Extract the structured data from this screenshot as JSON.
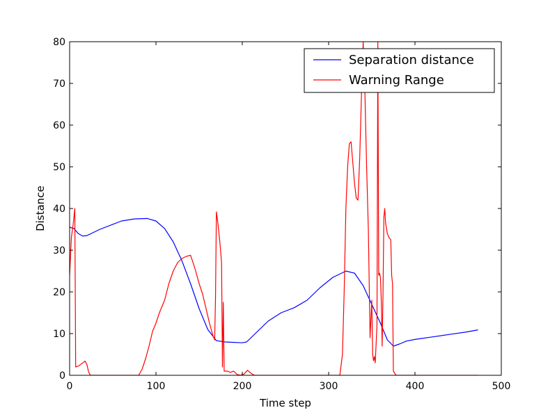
{
  "chart_data": {
    "type": "line",
    "xlabel": "Time step",
    "ylabel": "Distance",
    "xlim": [
      0,
      500
    ],
    "ylim": [
      0,
      80
    ],
    "xticks": [
      0,
      100,
      200,
      300,
      400,
      500
    ],
    "yticks": [
      0,
      10,
      20,
      30,
      40,
      50,
      60,
      70,
      80
    ],
    "grid": false,
    "legend_position": "top-right",
    "series": [
      {
        "name": "Separation distance",
        "color": "#0000ff",
        "points": [
          [
            0,
            35.5
          ],
          [
            5,
            35.2
          ],
          [
            10,
            34.0
          ],
          [
            15,
            33.4
          ],
          [
            20,
            33.5
          ],
          [
            25,
            34.0
          ],
          [
            35,
            35.0
          ],
          [
            50,
            36.2
          ],
          [
            60,
            37.0
          ],
          [
            75,
            37.5
          ],
          [
            90,
            37.6
          ],
          [
            100,
            37.0
          ],
          [
            110,
            35.2
          ],
          [
            120,
            32.0
          ],
          [
            130,
            27.5
          ],
          [
            140,
            22.0
          ],
          [
            150,
            16.0
          ],
          [
            160,
            11.0
          ],
          [
            170,
            8.3
          ],
          [
            180,
            8.0
          ],
          [
            190,
            7.9
          ],
          [
            200,
            7.8
          ],
          [
            205,
            8.0
          ],
          [
            215,
            10.0
          ],
          [
            230,
            13.0
          ],
          [
            245,
            15.0
          ],
          [
            260,
            16.2
          ],
          [
            275,
            18.0
          ],
          [
            290,
            21.0
          ],
          [
            305,
            23.5
          ],
          [
            320,
            25.0
          ],
          [
            330,
            24.5
          ],
          [
            340,
            21.5
          ],
          [
            350,
            17.0
          ],
          [
            360,
            12.5
          ],
          [
            368,
            8.5
          ],
          [
            375,
            7.0
          ],
          [
            382,
            7.5
          ],
          [
            390,
            8.2
          ],
          [
            400,
            8.6
          ],
          [
            420,
            9.2
          ],
          [
            440,
            9.8
          ],
          [
            460,
            10.4
          ],
          [
            473,
            10.9
          ]
        ]
      },
      {
        "name": "Warning Range",
        "color": "#ff0000",
        "points": [
          [
            0,
            24
          ],
          [
            2,
            33
          ],
          [
            4,
            36
          ],
          [
            6,
            40
          ],
          [
            7,
            2
          ],
          [
            10,
            2.2
          ],
          [
            14,
            2.8
          ],
          [
            18,
            3.4
          ],
          [
            20,
            2.6
          ],
          [
            22,
            0.8
          ],
          [
            24,
            0
          ],
          [
            80,
            0
          ],
          [
            84,
            1.5
          ],
          [
            88,
            4
          ],
          [
            92,
            7
          ],
          [
            96,
            10.5
          ],
          [
            100,
            12.5
          ],
          [
            104,
            15
          ],
          [
            110,
            18
          ],
          [
            115,
            22
          ],
          [
            120,
            25
          ],
          [
            125,
            27
          ],
          [
            130,
            28
          ],
          [
            135,
            28.5
          ],
          [
            140,
            28.8
          ],
          [
            143,
            27
          ],
          [
            146,
            25
          ],
          [
            150,
            22
          ],
          [
            154,
            19.5
          ],
          [
            158,
            16
          ],
          [
            162,
            12.5
          ],
          [
            166,
            9.5
          ],
          [
            168,
            8.5
          ],
          [
            169,
            19
          ],
          [
            170,
            39.2
          ],
          [
            172,
            36
          ],
          [
            174,
            32
          ],
          [
            176,
            27
          ],
          [
            177,
            2
          ],
          [
            178,
            17.5
          ],
          [
            179,
            1
          ],
          [
            183,
            1
          ],
          [
            186,
            0.7
          ],
          [
            190,
            1
          ],
          [
            194,
            0.2
          ],
          [
            198,
            0
          ],
          [
            202,
            0.3
          ],
          [
            206,
            1.2
          ],
          [
            210,
            0.5
          ],
          [
            214,
            0
          ],
          [
            313,
            0
          ],
          [
            316,
            5
          ],
          [
            318,
            20
          ],
          [
            320,
            40
          ],
          [
            322,
            50
          ],
          [
            324,
            55.5
          ],
          [
            326,
            56
          ],
          [
            328,
            51
          ],
          [
            330,
            46
          ],
          [
            332,
            42.5
          ],
          [
            334,
            42
          ],
          [
            336,
            52
          ],
          [
            338,
            67
          ],
          [
            340,
            80
          ],
          [
            342,
            68
          ],
          [
            344,
            50
          ],
          [
            346,
            35
          ],
          [
            348,
            9
          ],
          [
            350,
            18
          ],
          [
            351,
            5
          ],
          [
            352,
            3.5
          ],
          [
            353,
            4.5
          ],
          [
            354,
            3
          ],
          [
            356,
            12
          ],
          [
            357,
            80
          ],
          [
            358,
            24
          ],
          [
            359,
            24.5
          ],
          [
            360,
            23.5
          ],
          [
            361,
            18
          ],
          [
            362,
            7
          ],
          [
            363,
            20
          ],
          [
            364,
            38
          ],
          [
            365,
            40
          ],
          [
            366,
            36.5
          ],
          [
            368,
            34
          ],
          [
            370,
            33
          ],
          [
            372,
            32.5
          ],
          [
            373,
            24
          ],
          [
            374,
            22
          ],
          [
            375,
            1
          ],
          [
            378,
            0
          ],
          [
            473,
            0
          ]
        ]
      }
    ]
  }
}
